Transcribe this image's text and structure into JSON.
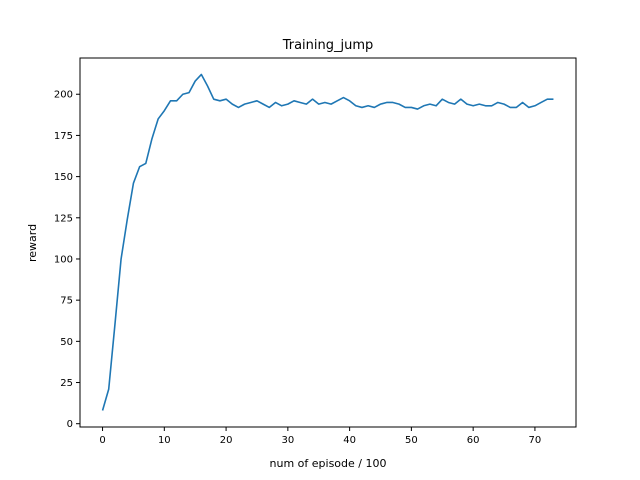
{
  "chart_data": {
    "type": "line",
    "title": "Training_jump",
    "xlabel": "num of episode / 100",
    "ylabel": "reward",
    "xlim": [
      -3.65,
      76.65
    ],
    "ylim": [
      -2,
      222
    ],
    "xticks": [
      0,
      10,
      20,
      30,
      40,
      50,
      60,
      70
    ],
    "yticks": [
      0,
      25,
      50,
      75,
      100,
      125,
      150,
      175,
      200
    ],
    "grid": false,
    "color": "#1f77b4",
    "series": [
      {
        "x": [
          0,
          1,
          2,
          3,
          4,
          5,
          6,
          7,
          8,
          9,
          10,
          11,
          12,
          13,
          14,
          15,
          16,
          17,
          18,
          19,
          20,
          21,
          22,
          23,
          24,
          25,
          26,
          27,
          28,
          29,
          30,
          31,
          32,
          33,
          34,
          35,
          36,
          37,
          38,
          39,
          40,
          41,
          42,
          43,
          44,
          45,
          46,
          47,
          48,
          49,
          50,
          51,
          52,
          53,
          54,
          55,
          56,
          57,
          58,
          59,
          60,
          61,
          62,
          63,
          64,
          65,
          66,
          67,
          68,
          69,
          70,
          71,
          72,
          73
        ],
        "values": [
          8,
          21,
          60,
          100,
          124,
          146,
          156,
          158,
          173,
          185,
          190,
          196,
          196,
          200,
          201,
          208,
          212,
          205,
          197,
          196,
          197,
          194,
          192,
          194,
          195,
          196,
          194,
          192,
          195,
          193,
          194,
          196,
          195,
          194,
          197,
          194,
          195,
          194,
          196,
          198,
          196,
          193,
          192,
          193,
          192,
          194,
          195,
          195,
          194,
          192,
          192,
          191,
          193,
          194,
          193,
          197,
          195,
          194,
          197,
          194,
          193,
          194,
          193,
          193,
          195,
          194,
          192,
          192,
          195,
          192,
          193,
          195,
          197,
          197
        ]
      }
    ]
  }
}
